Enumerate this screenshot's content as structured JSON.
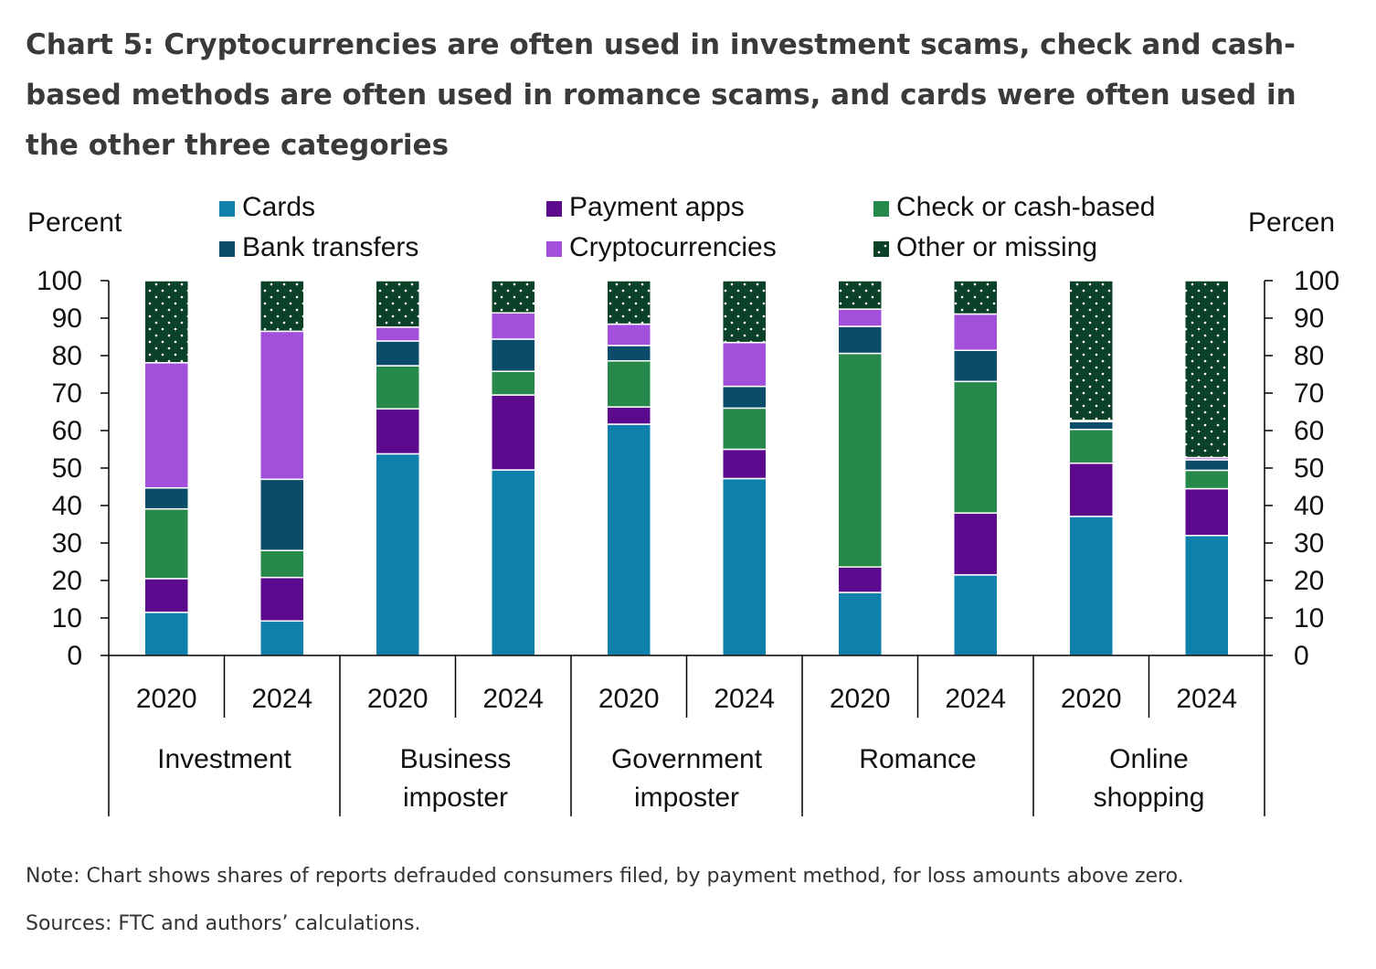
{
  "chart_data": {
    "type": "bar",
    "stacked": true,
    "title": "Chart 5: Cryptocurrencies are often used in investment scams, check and cash-based methods are often used in romance scams, and cards were often used in the other three categories",
    "ylabel_left": "Percent",
    "ylabel_right": "Percen",
    "ylim": [
      0,
      100
    ],
    "yticks": [
      0,
      10,
      20,
      30,
      40,
      50,
      60,
      70,
      80,
      90,
      100
    ],
    "groups": [
      {
        "name": "Investment",
        "lines": [
          "Investment"
        ]
      },
      {
        "name": "Business imposter",
        "lines": [
          "Business",
          "imposter"
        ]
      },
      {
        "name": "Government imposter",
        "lines": [
          "Government",
          "imposter"
        ]
      },
      {
        "name": "Romance",
        "lines": [
          "Romance"
        ]
      },
      {
        "name": "Online shopping",
        "lines": [
          "Online",
          "shopping"
        ]
      }
    ],
    "years": [
      "2020",
      "2024"
    ],
    "categories": [
      "Investment 2020",
      "Investment 2024",
      "Business imposter 2020",
      "Business imposter 2024",
      "Government imposter 2020",
      "Government imposter 2024",
      "Romance 2020",
      "Romance 2024",
      "Online shopping 2020",
      "Online shopping 2024"
    ],
    "series": [
      {
        "name": "Cards",
        "color": "#0f7fab",
        "pattern": false,
        "values": [
          11.5,
          9.2,
          53.8,
          49.5,
          61.7,
          47.2,
          16.8,
          21.5,
          37.1,
          32.0
        ]
      },
      {
        "name": "Payment apps",
        "color": "#5b0a8e",
        "pattern": false,
        "values": [
          9.0,
          11.6,
          12.0,
          20.0,
          4.6,
          7.8,
          6.8,
          16.5,
          14.2,
          12.5
        ]
      },
      {
        "name": "Check or cash-based",
        "color": "#27884c",
        "pattern": false,
        "values": [
          18.6,
          7.2,
          11.5,
          6.3,
          12.3,
          11.0,
          57.0,
          35.1,
          9.0,
          4.9
        ]
      },
      {
        "name": "Bank transfers",
        "color": "#0b4c6b",
        "pattern": false,
        "values": [
          5.6,
          19.0,
          6.6,
          8.6,
          4.1,
          5.8,
          7.2,
          8.3,
          2.1,
          2.8
        ]
      },
      {
        "name": "Cryptocurrencies",
        "color": "#a24fdc",
        "pattern": false,
        "values": [
          33.4,
          39.5,
          3.7,
          7.0,
          5.7,
          11.7,
          4.6,
          9.7,
          0.3,
          0.6
        ]
      },
      {
        "name": "Other or missing",
        "color": "#0a4128",
        "pattern": true,
        "values": [
          21.9,
          13.5,
          12.4,
          8.6,
          11.6,
          16.5,
          7.6,
          8.9,
          37.3,
          47.2
        ]
      }
    ],
    "legend_position": "top"
  },
  "footer": {
    "note": "Note: Chart shows shares of reports defrauded consumers filed, by payment method, for loss amounts above zero.",
    "source": "Sources: FTC and authors’ calculations."
  }
}
